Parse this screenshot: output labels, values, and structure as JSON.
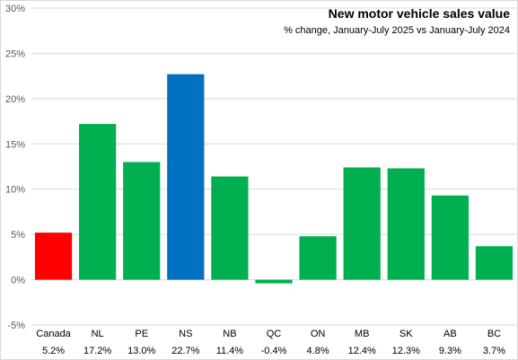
{
  "chart_data": {
    "type": "bar",
    "title": "New motor vehicle sales value",
    "subtitle": "% change, January-July 2025 vs January-July 2024",
    "xlabel": "",
    "ylabel": "",
    "ylim": [
      -5,
      30
    ],
    "yticks": [
      "-5%",
      "0%",
      "5%",
      "10%",
      "15%",
      "20%",
      "25%",
      "30%"
    ],
    "ytick_values": [
      -5,
      0,
      5,
      10,
      15,
      20,
      25,
      30
    ],
    "grid": true,
    "legend": "none",
    "categories": [
      "Canada",
      "NL",
      "PE",
      "NS",
      "NB",
      "QC",
      "ON",
      "MB",
      "SK",
      "AB",
      "BC"
    ],
    "values": [
      5.2,
      17.2,
      13.0,
      22.7,
      11.4,
      -0.4,
      4.8,
      12.4,
      12.3,
      9.3,
      3.7
    ],
    "value_labels": [
      "5.2%",
      "17.2%",
      "13.0%",
      "22.7%",
      "11.4%",
      "-0.4%",
      "4.8%",
      "12.4%",
      "12.3%",
      "9.3%",
      "3.7%"
    ],
    "bar_colors": [
      "#ff0000",
      "#00b050",
      "#00b050",
      "#0070c0",
      "#00b050",
      "#00b050",
      "#00b050",
      "#00b050",
      "#00b050",
      "#00b050",
      "#00b050"
    ]
  }
}
